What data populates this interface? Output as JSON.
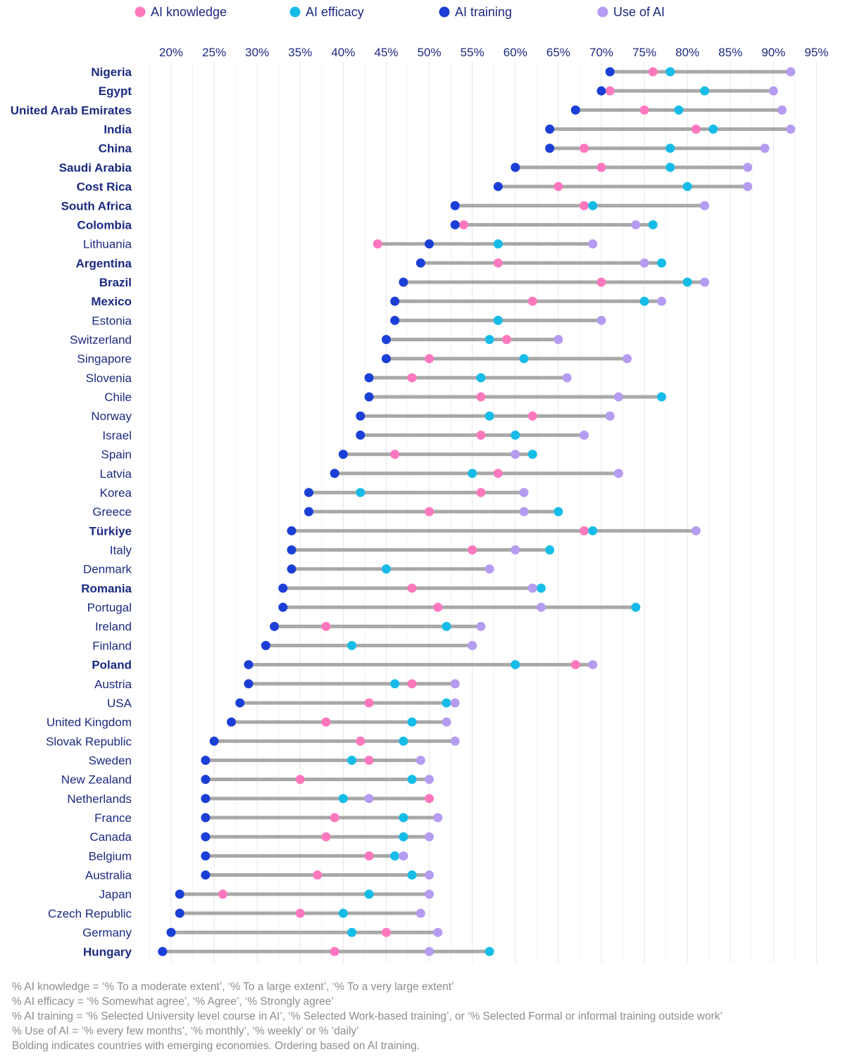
{
  "colors": {
    "knowledge": "#ff78be",
    "efficacy": "#16bce8",
    "training": "#1b3fd6",
    "use": "#b59cf0",
    "range": "#a8a8a8",
    "label": "#1a2a80",
    "footnote": "#8c8c8c"
  },
  "chart_data": {
    "type": "dot-range",
    "xlim": [
      15,
      96
    ],
    "x_ticks": [
      20,
      25,
      30,
      35,
      40,
      45,
      50,
      55,
      60,
      65,
      70,
      75,
      80,
      85,
      90,
      95
    ],
    "x_tick_labels": [
      "20%",
      "25%",
      "30%",
      "35%",
      "40%",
      "45%",
      "50%",
      "55%",
      "60%",
      "65%",
      "70%",
      "75%",
      "80%",
      "85%",
      "90%",
      "95%"
    ],
    "grid": true,
    "legend_position": "top",
    "series": [
      {
        "key": "knowledge",
        "name": "AI knowledge"
      },
      {
        "key": "efficacy",
        "name": "AI efficacy"
      },
      {
        "key": "training",
        "name": "AI training"
      },
      {
        "key": "use",
        "name": "Use of AI"
      }
    ],
    "rows": [
      {
        "country": "Nigeria",
        "emerging": true,
        "training": 71,
        "knowledge": 76,
        "efficacy": 78,
        "use": 92
      },
      {
        "country": "Egypt",
        "emerging": true,
        "training": 70,
        "knowledge": 71,
        "efficacy": 82,
        "use": 90
      },
      {
        "country": "United Arab Emirates",
        "emerging": true,
        "training": 67,
        "knowledge": 75,
        "efficacy": 79,
        "use": 91
      },
      {
        "country": "India",
        "emerging": true,
        "training": 64,
        "knowledge": 81,
        "efficacy": 83,
        "use": 92
      },
      {
        "country": "China",
        "emerging": true,
        "training": 64,
        "knowledge": 68,
        "efficacy": 78,
        "use": 89
      },
      {
        "country": "Saudi Arabia",
        "emerging": true,
        "training": 60,
        "knowledge": 70,
        "efficacy": 78,
        "use": 87
      },
      {
        "country": "Cost Rica",
        "emerging": true,
        "training": 58,
        "knowledge": 65,
        "efficacy": 80,
        "use": 87
      },
      {
        "country": "South Africa",
        "emerging": true,
        "training": 53,
        "knowledge": 68,
        "efficacy": 69,
        "use": 82
      },
      {
        "country": "Colombia",
        "emerging": true,
        "training": 53,
        "knowledge": 54,
        "efficacy": 76,
        "use": 74
      },
      {
        "country": "Lithuania",
        "emerging": false,
        "training": 50,
        "knowledge": 44,
        "efficacy": 58,
        "use": 69
      },
      {
        "country": "Argentina",
        "emerging": true,
        "training": 49,
        "knowledge": 58,
        "efficacy": 77,
        "use": 75
      },
      {
        "country": "Brazil",
        "emerging": true,
        "training": 47,
        "knowledge": 70,
        "efficacy": 80,
        "use": 82
      },
      {
        "country": "Mexico",
        "emerging": true,
        "training": 46,
        "knowledge": 62,
        "efficacy": 75,
        "use": 77
      },
      {
        "country": "Estonia",
        "emerging": false,
        "training": 46,
        "knowledge": 58,
        "efficacy": 58,
        "use": 70
      },
      {
        "country": "Switzerland",
        "emerging": false,
        "training": 45,
        "knowledge": 59,
        "efficacy": 57,
        "use": 65
      },
      {
        "country": "Singapore",
        "emerging": false,
        "training": 45,
        "knowledge": 50,
        "efficacy": 61,
        "use": 73
      },
      {
        "country": "Slovenia",
        "emerging": false,
        "training": 43,
        "knowledge": 48,
        "efficacy": 56,
        "use": 66
      },
      {
        "country": "Chile",
        "emerging": false,
        "training": 43,
        "knowledge": 56,
        "efficacy": 77,
        "use": 72
      },
      {
        "country": "Norway",
        "emerging": false,
        "training": 42,
        "knowledge": 62,
        "efficacy": 57,
        "use": 71
      },
      {
        "country": "Israel",
        "emerging": false,
        "training": 42,
        "knowledge": 56,
        "efficacy": 60,
        "use": 68
      },
      {
        "country": "Spain",
        "emerging": false,
        "training": 40,
        "knowledge": 46,
        "efficacy": 62,
        "use": 60
      },
      {
        "country": "Latvia",
        "emerging": false,
        "training": 39,
        "knowledge": 58,
        "efficacy": 55,
        "use": 72
      },
      {
        "country": "Korea",
        "emerging": false,
        "training": 36,
        "knowledge": 56,
        "efficacy": 42,
        "use": 61
      },
      {
        "country": "Greece",
        "emerging": false,
        "training": 36,
        "knowledge": 50,
        "efficacy": 65,
        "use": 61
      },
      {
        "country": "Türkiye",
        "emerging": true,
        "training": 34,
        "knowledge": 68,
        "efficacy": 69,
        "use": 81
      },
      {
        "country": "Italy",
        "emerging": false,
        "training": 34,
        "knowledge": 55,
        "efficacy": 64,
        "use": 60
      },
      {
        "country": "Denmark",
        "emerging": false,
        "training": 34,
        "knowledge": 45,
        "efficacy": 45,
        "use": 57
      },
      {
        "country": "Romania",
        "emerging": true,
        "training": 33,
        "knowledge": 48,
        "efficacy": 63,
        "use": 62
      },
      {
        "country": "Portugal",
        "emerging": false,
        "training": 33,
        "knowledge": 51,
        "efficacy": 74,
        "use": 63
      },
      {
        "country": "Ireland",
        "emerging": false,
        "training": 32,
        "knowledge": 38,
        "efficacy": 52,
        "use": 56
      },
      {
        "country": "Finland",
        "emerging": false,
        "training": 31,
        "knowledge": 31,
        "efficacy": 41,
        "use": 55
      },
      {
        "country": "Poland",
        "emerging": true,
        "training": 29,
        "knowledge": 67,
        "efficacy": 60,
        "use": 69
      },
      {
        "country": "Austria",
        "emerging": false,
        "training": 29,
        "knowledge": 48,
        "efficacy": 46,
        "use": 53
      },
      {
        "country": "USA",
        "emerging": false,
        "training": 28,
        "knowledge": 43,
        "efficacy": 52,
        "use": 53
      },
      {
        "country": "United Kingdom",
        "emerging": false,
        "training": 27,
        "knowledge": 38,
        "efficacy": 48,
        "use": 52
      },
      {
        "country": "Slovak Republic",
        "emerging": false,
        "training": 25,
        "knowledge": 42,
        "efficacy": 47,
        "use": 53
      },
      {
        "country": "Sweden",
        "emerging": false,
        "training": 24,
        "knowledge": 43,
        "efficacy": 41,
        "use": 49
      },
      {
        "country": "New Zealand",
        "emerging": false,
        "training": 24,
        "knowledge": 35,
        "efficacy": 48,
        "use": 50
      },
      {
        "country": "Netherlands",
        "emerging": false,
        "training": 24,
        "knowledge": 50,
        "efficacy": 40,
        "use": 43
      },
      {
        "country": "France",
        "emerging": false,
        "training": 24,
        "knowledge": 39,
        "efficacy": 47,
        "use": 51
      },
      {
        "country": "Canada",
        "emerging": false,
        "training": 24,
        "knowledge": 38,
        "efficacy": 47,
        "use": 50
      },
      {
        "country": "Belgium",
        "emerging": false,
        "training": 24,
        "knowledge": 43,
        "efficacy": 46,
        "use": 47
      },
      {
        "country": "Australia",
        "emerging": false,
        "training": 24,
        "knowledge": 37,
        "efficacy": 48,
        "use": 50
      },
      {
        "country": "Japan",
        "emerging": false,
        "training": 21,
        "knowledge": 26,
        "efficacy": 43,
        "use": 50
      },
      {
        "country": "Czech Republic",
        "emerging": false,
        "training": 21,
        "knowledge": 35,
        "efficacy": 40,
        "use": 49
      },
      {
        "country": "Germany",
        "emerging": false,
        "training": 20,
        "knowledge": 45,
        "efficacy": 41,
        "use": 51
      },
      {
        "country": "Hungary",
        "emerging": true,
        "training": 19,
        "knowledge": 39,
        "efficacy": 57,
        "use": 50
      }
    ]
  },
  "footnotes": [
    "% AI knowledge = ‘% To a moderate extent’, ‘% To a large extent’, ‘% To a very large extent’",
    "% AI efficacy = ‘% Somewhat agree’, ‘% Agree’, ‘% Strongly agree’",
    "% AI training = ‘% Selected University level course in AI’, ‘% Selected Work-based training’, or ‘% Selected Formal or informal training outside work’",
    "% Use of AI = ‘% every few months’, ‘% monthly’, ‘% weekly’ or % ‘daily’",
    "Bolding indicates countries with emerging economies. Ordering based on AI training."
  ]
}
